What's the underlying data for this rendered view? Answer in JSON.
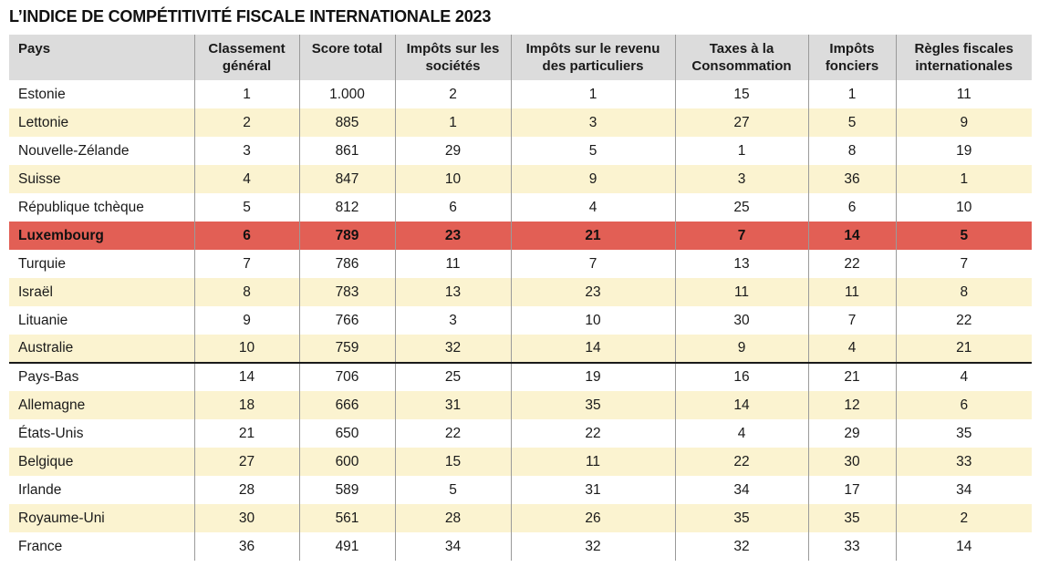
{
  "title": "L’INDICE DE COMPÉTITIVITÉ FISCALE INTERNATIONALE 2023",
  "colors": {
    "header_bg": "#dcdcdc",
    "alt_row_bg": "#fbf3d0",
    "highlight_bg": "#e25f55"
  },
  "chart_data": {
    "type": "table",
    "title": "L’INDICE DE COMPÉTITIVITÉ FISCALE INTERNATIONALE 2023",
    "columns": [
      "Pays",
      "Classement général",
      "Score total",
      "Impôts sur les sociétés",
      "Impôts sur le revenu des particuliers",
      "Taxes à la Consommation",
      "Impôts fonciers",
      "Règles fiscales internationales"
    ],
    "highlight_row": "Luxembourg",
    "rows": [
      [
        "Estonie",
        "1",
        "1.000",
        "2",
        "1",
        "15",
        "1",
        "11"
      ],
      [
        "Lettonie",
        "2",
        "885",
        "1",
        "3",
        "27",
        "5",
        "9"
      ],
      [
        "Nouvelle-Zélande",
        "3",
        "861",
        "29",
        "5",
        "1",
        "8",
        "19"
      ],
      [
        "Suisse",
        "4",
        "847",
        "10",
        "9",
        "3",
        "36",
        "1"
      ],
      [
        "République tchèque",
        "5",
        "812",
        "6",
        "4",
        "25",
        "6",
        "10"
      ],
      [
        "Luxembourg",
        "6",
        "789",
        "23",
        "21",
        "7",
        "14",
        "5"
      ],
      [
        "Turquie",
        "7",
        "786",
        "11",
        "7",
        "13",
        "22",
        "7"
      ],
      [
        "Israël",
        "8",
        "783",
        "13",
        "23",
        "11",
        "11",
        "8"
      ],
      [
        "Lituanie",
        "9",
        "766",
        "3",
        "10",
        "30",
        "7",
        "22"
      ],
      [
        "Australie",
        "10",
        "759",
        "32",
        "14",
        "9",
        "4",
        "21"
      ],
      [
        "Pays-Bas",
        "14",
        "706",
        "25",
        "19",
        "16",
        "21",
        "4"
      ],
      [
        "Allemagne",
        "18",
        "666",
        "31",
        "35",
        "14",
        "12",
        "6"
      ],
      [
        "États-Unis",
        "21",
        "650",
        "22",
        "22",
        "4",
        "29",
        "35"
      ],
      [
        "Belgique",
        "27",
        "600",
        "15",
        "11",
        "22",
        "30",
        "33"
      ],
      [
        "Irlande",
        "28",
        "589",
        "5",
        "31",
        "34",
        "17",
        "34"
      ],
      [
        "Royaume-Uni",
        "30",
        "561",
        "28",
        "26",
        "35",
        "35",
        "2"
      ],
      [
        "France",
        "36",
        "491",
        "34",
        "32",
        "32",
        "33",
        "14"
      ]
    ]
  }
}
